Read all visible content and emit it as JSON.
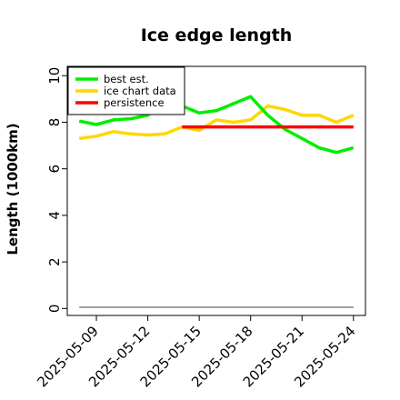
{
  "chart_data": {
    "type": "line",
    "title": "Ice edge length",
    "xlabel": "",
    "ylabel": "Length (1000km)",
    "ylim": [
      0,
      10
    ],
    "yticks": [
      0,
      2,
      4,
      6,
      8,
      10
    ],
    "x_dates": [
      "2025-05-08",
      "2025-05-09",
      "2025-05-10",
      "2025-05-11",
      "2025-05-12",
      "2025-05-13",
      "2025-05-14",
      "2025-05-15",
      "2025-05-16",
      "2025-05-17",
      "2025-05-18",
      "2025-05-19",
      "2025-05-20",
      "2025-05-21",
      "2025-05-22",
      "2025-05-23",
      "2025-05-24"
    ],
    "xticks": [
      "2025-05-09",
      "2025-05-12",
      "2025-05-15",
      "2025-05-18",
      "2025-05-21",
      "2025-05-24"
    ],
    "legend_position": "top-left",
    "series": [
      {
        "name": "best est.",
        "color": "#00ee00",
        "dates": [
          "2025-05-08",
          "2025-05-09",
          "2025-05-10",
          "2025-05-11",
          "2025-05-12",
          "2025-05-13",
          "2025-05-14",
          "2025-05-15",
          "2025-05-16",
          "2025-05-17",
          "2025-05-18",
          "2025-05-19",
          "2025-05-20",
          "2025-05-21",
          "2025-05-22",
          "2025-05-23",
          "2025-05-24"
        ],
        "values": [
          8.05,
          7.9,
          8.1,
          8.15,
          8.3,
          8.95,
          8.7,
          8.4,
          8.5,
          8.8,
          9.1,
          8.3,
          7.7,
          7.3,
          6.9,
          6.7,
          6.9
        ]
      },
      {
        "name": "ice chart data",
        "color": "#ffd700",
        "dates": [
          "2025-05-08",
          "2025-05-09",
          "2025-05-10",
          "2025-05-11",
          "2025-05-12",
          "2025-05-13",
          "2025-05-14",
          "2025-05-15",
          "2025-05-16",
          "2025-05-17",
          "2025-05-18",
          "2025-05-19",
          "2025-05-20",
          "2025-05-21",
          "2025-05-22",
          "2025-05-23",
          "2025-05-24"
        ],
        "values": [
          7.3,
          7.4,
          7.6,
          7.5,
          7.45,
          7.5,
          7.8,
          7.65,
          8.1,
          8.0,
          8.1,
          8.7,
          8.55,
          8.3,
          8.3,
          8.0,
          8.3
        ]
      },
      {
        "name": "persistence",
        "color": "#ff0000",
        "dates": [
          "2025-05-14",
          "2025-05-24"
        ],
        "values": [
          7.8,
          7.8
        ]
      },
      {
        "name": "",
        "color": "#808080",
        "dates": [
          "2025-05-08",
          "2025-05-24"
        ],
        "values": [
          0.05,
          0.05
        ]
      }
    ]
  }
}
